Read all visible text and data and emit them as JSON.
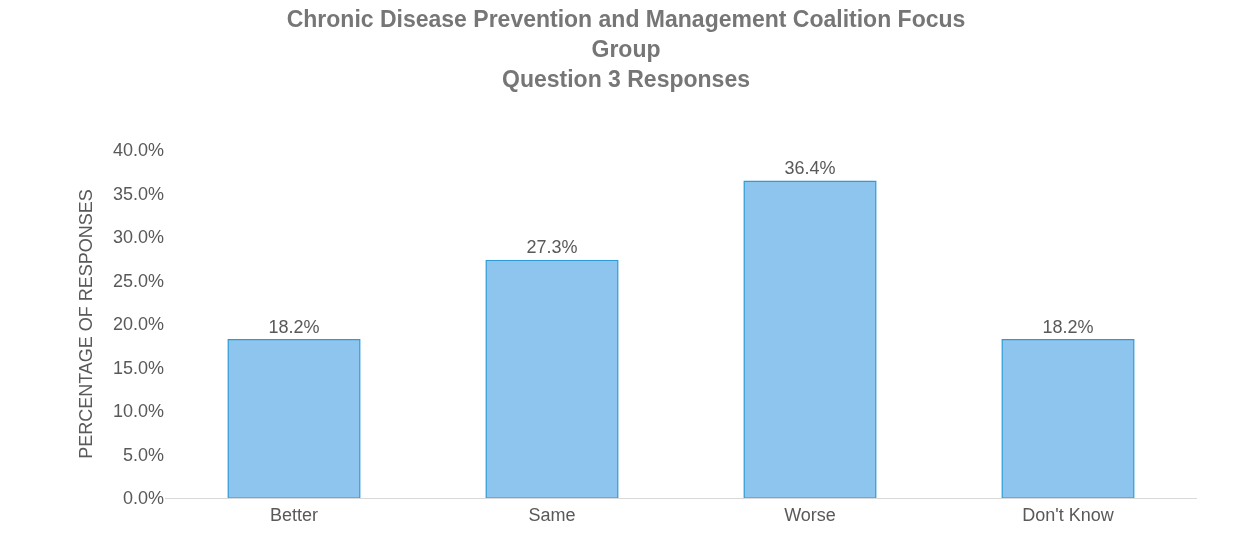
{
  "chart_data": {
    "type": "bar",
    "title": "Chronic Disease Prevention and Management Coalition Focus Group\nQuestion 3 Responses",
    "ylabel": "PERCENTAGE OF RESPONSES",
    "categories": [
      "Better",
      "Same",
      "Worse",
      "Don't Know"
    ],
    "values": [
      18.2,
      27.3,
      36.4,
      18.2
    ],
    "value_labels": [
      "18.2%",
      "27.3%",
      "36.4%",
      "18.2%"
    ],
    "color": "#8ec5ee",
    "ylim": [
      0,
      40
    ],
    "yticks": [
      {
        "value": 0,
        "label": "0.0%"
      },
      {
        "value": 5,
        "label": "5.0%"
      },
      {
        "value": 10,
        "label": "10.0%"
      },
      {
        "value": 15,
        "label": "15.0%"
      },
      {
        "value": 20,
        "label": "20.0%"
      },
      {
        "value": 25,
        "label": "25.0%"
      },
      {
        "value": 30,
        "label": "30.0%"
      },
      {
        "value": 35,
        "label": "35.0%"
      },
      {
        "value": 40,
        "label": "40.0%"
      }
    ]
  }
}
